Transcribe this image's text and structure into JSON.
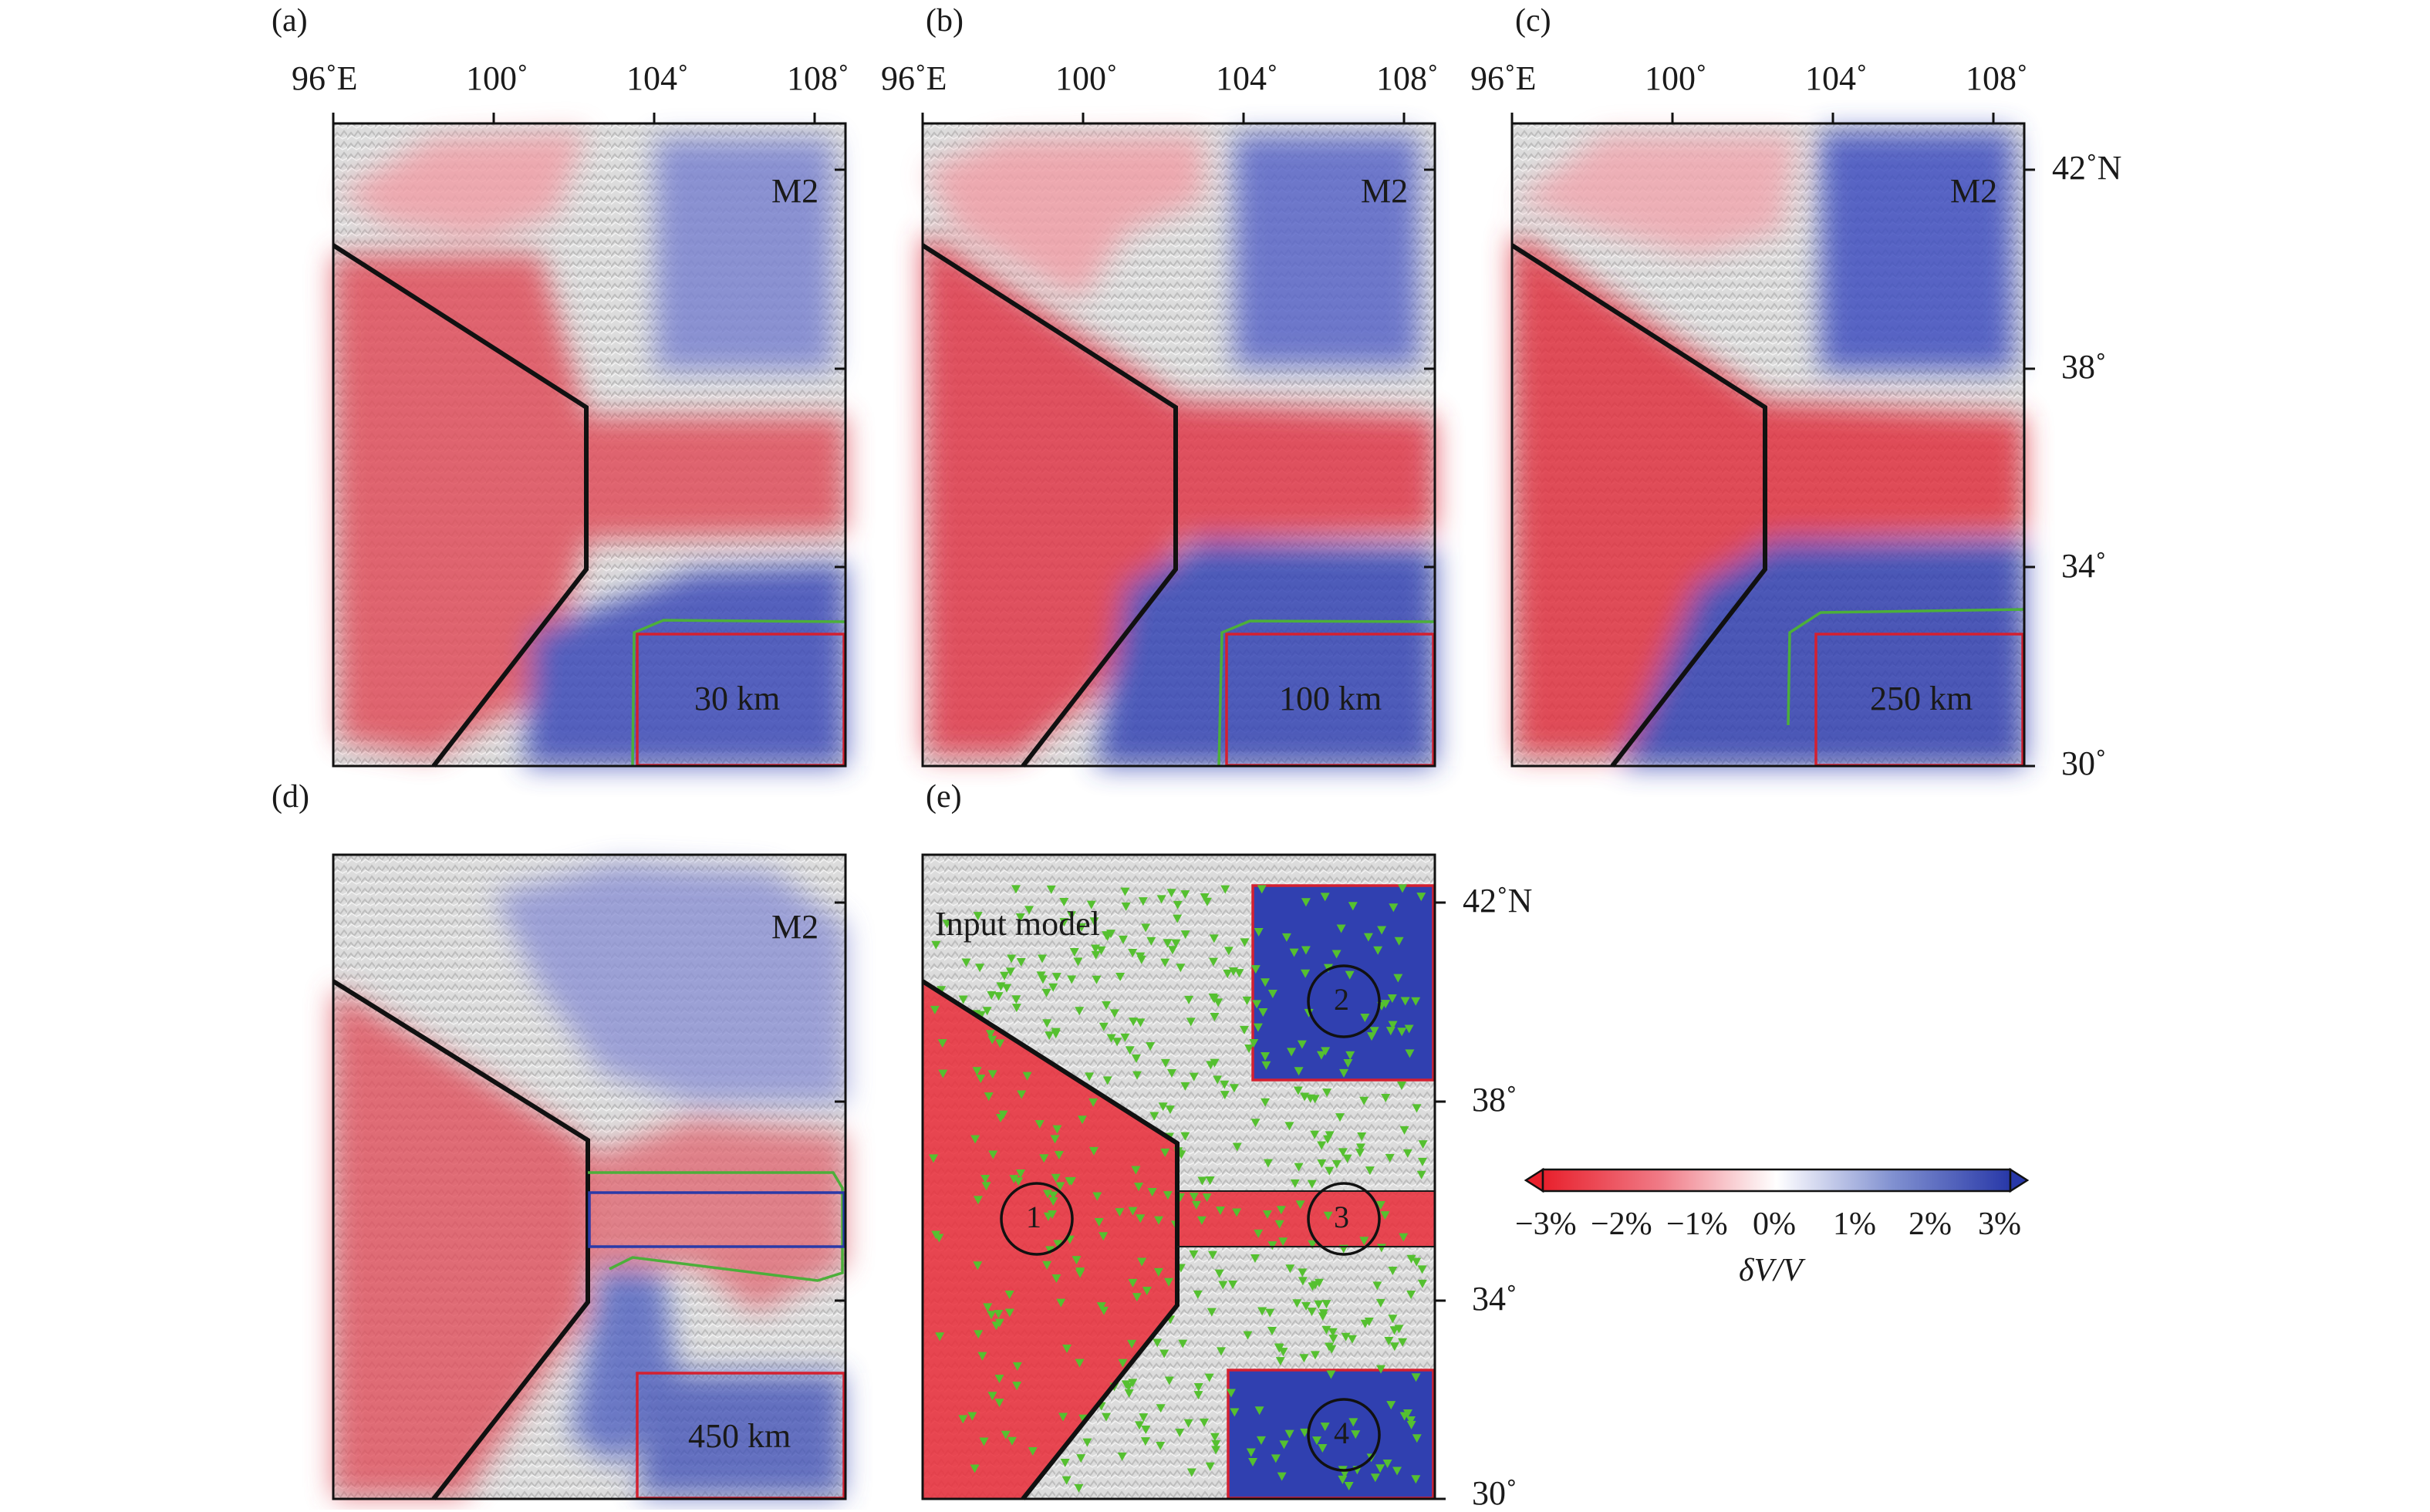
{
  "panels": [
    {
      "letter": "(a)",
      "region_label": "M2",
      "depth_label": "30 km"
    },
    {
      "letter": "(b)",
      "region_label": "M2",
      "depth_label": "100 km"
    },
    {
      "letter": "(c)",
      "region_label": "M2",
      "depth_label": "250 km"
    },
    {
      "letter": "(d)",
      "region_label": "M2",
      "depth_label": "450 km"
    },
    {
      "letter": "(e)",
      "title": "Input model",
      "blocks": [
        "1",
        "2",
        "3",
        "4"
      ]
    }
  ],
  "lon_ticks": [
    "96˚E",
    "100˚",
    "104˚",
    "108˚"
  ],
  "lat_ticks": [
    "42˚N",
    "38˚",
    "34˚",
    "30˚"
  ],
  "colorbar": {
    "tick_labels": [
      "−3%",
      "−2%",
      "−1%",
      "0%",
      "1%",
      "2%",
      "3%"
    ],
    "title": "δV/V",
    "colors": {
      "negative": "#e8303c",
      "zero": "#ffffff",
      "positive": "#3040b0"
    }
  },
  "colors": {
    "slow": "#e8303c",
    "fast": "#3040b0",
    "boundary": "#111111",
    "box_red": "#d42030",
    "box_blue": "#2a3aa8",
    "green_line": "#4caf3a",
    "station": "#55c030"
  }
}
